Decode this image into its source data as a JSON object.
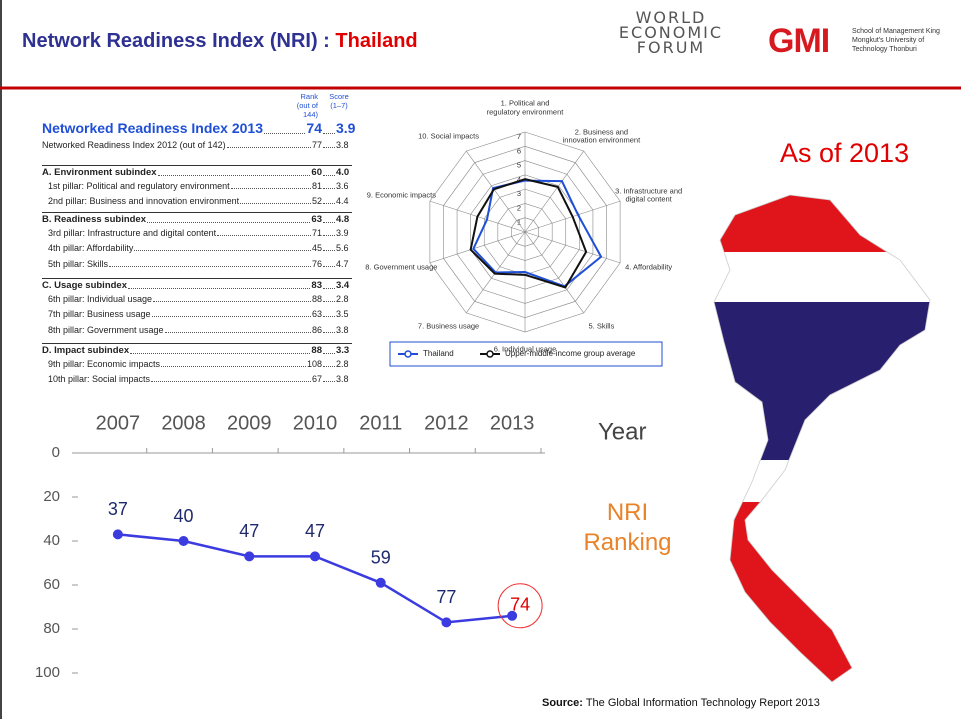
{
  "header": {
    "title": "Network Readiness Index (NRI) : ",
    "country": "Thailand",
    "logo_wef": "WORLD ECONOMIC FORUM",
    "logo_gmi": "GMI",
    "logo_gmi_sub": "School of Management King Mongkut's University of Technology Thonburi"
  },
  "table": {
    "col_rank": "Rank (out of 144)",
    "col_score": "Score (1–7)",
    "rows": [
      [
        "Networked Readiness Index 2013",
        "74",
        "3.9"
      ],
      [
        "Networked Readiness Index 2012 (out of 142)",
        "77",
        "3.8"
      ],
      [
        "A. Environment subindex",
        "60",
        "4.0"
      ],
      [
        "1st pillar: Political and regulatory environment",
        "81",
        "3.6"
      ],
      [
        "2nd pillar: Business and innovation environment",
        "52",
        "4.4"
      ],
      [
        "B. Readiness subindex",
        "63",
        "4.8"
      ],
      [
        "3rd pillar: Infrastructure and digital content",
        "71",
        "3.9"
      ],
      [
        "4th pillar: Affordability",
        "45",
        "5.6"
      ],
      [
        "5th pillar: Skills",
        "76",
        "4.7"
      ],
      [
        "C. Usage subindex",
        "83",
        "3.4"
      ],
      [
        "6th pillar: Individual usage",
        "88",
        "2.8"
      ],
      [
        "7th pillar: Business usage",
        "63",
        "3.5"
      ],
      [
        "8th pillar: Government usage",
        "86",
        "3.8"
      ],
      [
        "D. Impact subindex",
        "88",
        "3.3"
      ],
      [
        "9th pillar: Economic impacts",
        "108",
        "2.8"
      ],
      [
        "10th pillar: Social impacts",
        "67",
        "3.8"
      ]
    ]
  },
  "as_of": "As of 2013",
  "source_label": "Source:",
  "source": "The Global Information Technology Report 2013",
  "chart_data": [
    {
      "type": "radar",
      "categories": [
        "1. Political and regulatory environment",
        "2. Business and innovation environment",
        "3. Infrastructure and digital content",
        "4. Affordability",
        "5. Skills",
        "6. Individual usage",
        "7. Business usage",
        "8. Government usage",
        "9. Economic impacts",
        "10. Social impacts"
      ],
      "rlim": [
        0,
        7
      ],
      "rticks": [
        1,
        2,
        3,
        4,
        5,
        6,
        7
      ],
      "series": [
        {
          "name": "Thailand",
          "color": "#1f4fd6",
          "values": [
            3.6,
            4.4,
            3.9,
            5.6,
            4.7,
            2.8,
            3.5,
            3.8,
            2.8,
            3.8
          ]
        },
        {
          "name": "Upper-middle-income group average",
          "color": "#111111",
          "values": [
            3.7,
            3.9,
            3.5,
            4.5,
            4.8,
            3.0,
            3.6,
            4.0,
            3.5,
            3.7
          ]
        }
      ]
    },
    {
      "type": "line",
      "categories": [
        "2007",
        "2008",
        "2009",
        "2010",
        "2011",
        "2012",
        "2013"
      ],
      "values": [
        37,
        40,
        47,
        47,
        59,
        77,
        74
      ],
      "color": "#3b3be0",
      "ylim": [
        0,
        100
      ],
      "yticks": [
        0,
        20,
        40,
        60,
        80,
        100
      ],
      "y_inverted": true,
      "xlabel": "Year",
      "ylabel": "NRI Ranking"
    }
  ]
}
